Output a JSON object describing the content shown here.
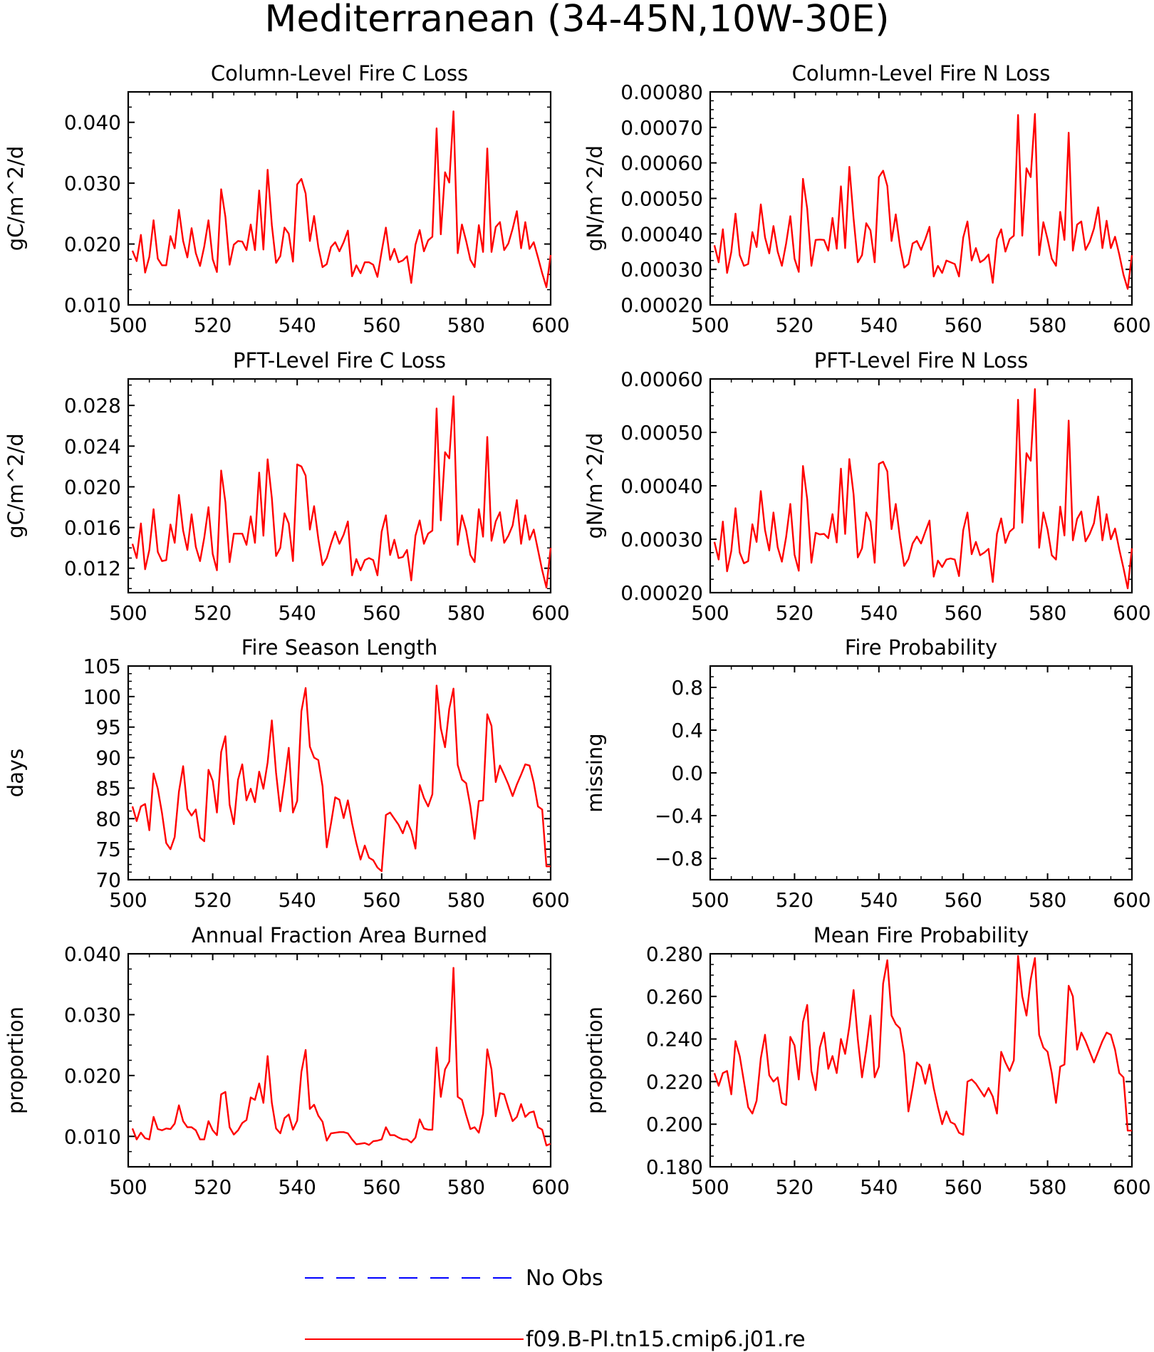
{
  "figure": {
    "title": "Mediterranean (34-45N,10W-30E)"
  },
  "legend": {
    "entries": [
      {
        "label": "No Obs",
        "color": "#0000ff",
        "style": "dashed"
      },
      {
        "label": "f09.B-PI.tn15.cmip6.j01.re",
        "color": "#ff0000",
        "style": "solid"
      }
    ]
  },
  "chart_data": [
    {
      "type": "line",
      "title": "Column-Level Fire C Loss",
      "ylabel": "gC/m^2/d",
      "xlim": [
        500,
        600
      ],
      "xticks": [
        "500",
        "520",
        "540",
        "560",
        "580",
        "600"
      ],
      "ylim": [
        0.01,
        0.045
      ],
      "yticks": [
        "0.010",
        "0.020",
        "0.030",
        "0.040"
      ],
      "series": [
        {
          "color": "#ff0000",
          "x_start": 501,
          "values": [
            0.0189,
            0.0172,
            0.0215,
            0.0153,
            0.0179,
            0.0239,
            0.0176,
            0.0165,
            0.0165,
            0.0213,
            0.0193,
            0.0256,
            0.0205,
            0.0178,
            0.0226,
            0.0185,
            0.0164,
            0.0196,
            0.0239,
            0.0175,
            0.0154,
            0.029,
            0.0245,
            0.0166,
            0.0199,
            0.0205,
            0.0204,
            0.019,
            0.0232,
            0.019,
            0.0288,
            0.0191,
            0.0322,
            0.0231,
            0.0169,
            0.018,
            0.0227,
            0.0217,
            0.0171,
            0.0298,
            0.0307,
            0.0283,
            0.0205,
            0.0246,
            0.0195,
            0.0162,
            0.0167,
            0.0195,
            0.0203,
            0.0188,
            0.0203,
            0.0222,
            0.0147,
            0.0165,
            0.0152,
            0.017,
            0.017,
            0.0166,
            0.0146,
            0.0188,
            0.0227,
            0.0174,
            0.0192,
            0.017,
            0.0173,
            0.018,
            0.0136,
            0.0199,
            0.0223,
            0.0188,
            0.0206,
            0.0212,
            0.039,
            0.0216,
            0.0318,
            0.0301,
            0.0418,
            0.0185,
            0.0232,
            0.0205,
            0.0174,
            0.0162,
            0.0231,
            0.0187,
            0.0357,
            0.0187,
            0.0228,
            0.0236,
            0.019,
            0.0201,
            0.0225,
            0.0254,
            0.0193,
            0.0236,
            0.0192,
            0.0203,
            0.0178,
            0.0152,
            0.0129,
            0.0182
          ]
        }
      ]
    },
    {
      "type": "line",
      "title": "Column-Level Fire N Loss",
      "ylabel": "gN/m^2/d",
      "xlim": [
        500,
        600
      ],
      "xticks": [
        "500",
        "520",
        "540",
        "560",
        "580",
        "600"
      ],
      "ylim": [
        0.0002,
        0.0008
      ],
      "yticks": [
        "0.00020",
        "0.00030",
        "0.00040",
        "0.00050",
        "0.00060",
        "0.00070",
        "0.00080"
      ],
      "series": [
        {
          "color": "#ff0000",
          "x_start": 501,
          "values": [
            0.000368,
            0.00032,
            0.000413,
            0.00029,
            0.000349,
            0.000457,
            0.00034,
            0.00031,
            0.000315,
            0.000405,
            0.000363,
            0.000483,
            0.00039,
            0.000345,
            0.000422,
            0.00035,
            0.00031,
            0.000373,
            0.00045,
            0.00033,
            0.000293,
            0.000555,
            0.000471,
            0.00031,
            0.000383,
            0.000384,
            0.000383,
            0.000353,
            0.000445,
            0.000358,
            0.000534,
            0.00036,
            0.000589,
            0.000443,
            0.00032,
            0.00034,
            0.00043,
            0.00041,
            0.00032,
            0.00056,
            0.000578,
            0.000535,
            0.00038,
            0.000455,
            0.000365,
            0.000305,
            0.000315,
            0.000373,
            0.00038,
            0.000355,
            0.000385,
            0.00042,
            0.00028,
            0.00031,
            0.00029,
            0.000325,
            0.00032,
            0.000315,
            0.00028,
            0.00039,
            0.000435,
            0.000325,
            0.00036,
            0.00032,
            0.000328,
            0.000342,
            0.000262,
            0.000385,
            0.000413,
            0.00035,
            0.000385,
            0.000395,
            0.000735,
            0.000395,
            0.000585,
            0.00056,
            0.000738,
            0.00034,
            0.000433,
            0.000385,
            0.00033,
            0.00031,
            0.000462,
            0.000383,
            0.000685,
            0.000353,
            0.000426,
            0.000435,
            0.000355,
            0.000378,
            0.000415,
            0.000475,
            0.00036,
            0.000437,
            0.00036,
            0.000392,
            0.000342,
            0.000285,
            0.000245,
            0.00034
          ]
        }
      ]
    },
    {
      "type": "line",
      "title": "PFT-Level Fire C Loss",
      "ylabel": "gC/m^2/d",
      "xlim": [
        500,
        600
      ],
      "xticks": [
        "500",
        "520",
        "540",
        "560",
        "580",
        "600"
      ],
      "ylim": [
        0.0096,
        0.0306
      ],
      "yticks": [
        "0.012",
        "0.016",
        "0.020",
        "0.024",
        "0.028"
      ],
      "series": [
        {
          "color": "#ff0000",
          "x_start": 501,
          "values": [
            0.0144,
            0.013,
            0.0164,
            0.0119,
            0.0138,
            0.0178,
            0.0136,
            0.0127,
            0.0128,
            0.0163,
            0.0145,
            0.0192,
            0.0157,
            0.0138,
            0.0173,
            0.0141,
            0.0127,
            0.015,
            0.018,
            0.0134,
            0.0118,
            0.0216,
            0.0185,
            0.0126,
            0.0154,
            0.0154,
            0.0154,
            0.0143,
            0.0171,
            0.0145,
            0.0214,
            0.0152,
            0.0227,
            0.0189,
            0.0132,
            0.014,
            0.0174,
            0.0164,
            0.0127,
            0.0222,
            0.022,
            0.0211,
            0.0158,
            0.0181,
            0.0149,
            0.0123,
            0.013,
            0.0144,
            0.0156,
            0.0144,
            0.0153,
            0.0166,
            0.0113,
            0.0129,
            0.0118,
            0.0128,
            0.013,
            0.0128,
            0.0113,
            0.0156,
            0.0172,
            0.0133,
            0.0148,
            0.013,
            0.0131,
            0.0138,
            0.0108,
            0.0152,
            0.0167,
            0.0144,
            0.0154,
            0.0157,
            0.0277,
            0.0167,
            0.0234,
            0.0228,
            0.0289,
            0.0143,
            0.0172,
            0.0157,
            0.0133,
            0.0126,
            0.0178,
            0.0151,
            0.0249,
            0.0147,
            0.0166,
            0.0175,
            0.0145,
            0.0152,
            0.0162,
            0.0187,
            0.0144,
            0.0172,
            0.0148,
            0.0158,
            0.0138,
            0.0118,
            0.0101,
            0.014
          ]
        }
      ]
    },
    {
      "type": "line",
      "title": "PFT-Level Fire N Loss",
      "ylabel": "gN/m^2/d",
      "xlim": [
        500,
        600
      ],
      "xticks": [
        "500",
        "520",
        "540",
        "560",
        "580",
        "600"
      ],
      "ylim": [
        0.0002,
        0.0006
      ],
      "yticks": [
        "0.00020",
        "0.00030",
        "0.00040",
        "0.00050",
        "0.00060"
      ],
      "series": [
        {
          "color": "#ff0000",
          "x_start": 501,
          "values": [
            0.000295,
            0.000262,
            0.000333,
            0.00024,
            0.000278,
            0.000358,
            0.000275,
            0.000255,
            0.000259,
            0.000328,
            0.000295,
            0.00039,
            0.000317,
            0.000279,
            0.00035,
            0.000285,
            0.000258,
            0.000304,
            0.000366,
            0.000271,
            0.000241,
            0.000437,
            0.000375,
            0.000256,
            0.000312,
            0.000309,
            0.00031,
            0.000302,
            0.000347,
            0.000294,
            0.000432,
            0.00031,
            0.00045,
            0.000384,
            0.000266,
            0.000283,
            0.00035,
            0.000333,
            0.000256,
            0.000441,
            0.000445,
            0.000427,
            0.000319,
            0.000366,
            0.000302,
            0.00025,
            0.000263,
            0.000292,
            0.000305,
            0.000292,
            0.000314,
            0.000335,
            0.00023,
            0.00026,
            0.000248,
            0.000262,
            0.000264,
            0.000262,
            0.000231,
            0.000317,
            0.00035,
            0.000272,
            0.000295,
            0.00027,
            0.000275,
            0.000282,
            0.00022,
            0.00031,
            0.000339,
            0.000293,
            0.000314,
            0.000321,
            0.000561,
            0.000331,
            0.000461,
            0.000447,
            0.000581,
            0.000284,
            0.00035,
            0.000318,
            0.00027,
            0.000262,
            0.000361,
            0.000307,
            0.000522,
            0.000298,
            0.000338,
            0.000352,
            0.000296,
            0.00031,
            0.00033,
            0.00038,
            0.000298,
            0.000347,
            0.0003,
            0.00032,
            0.000281,
            0.000246,
            0.000208,
            0.000283
          ]
        }
      ]
    },
    {
      "type": "line",
      "title": "Fire Season Length",
      "ylabel": "days",
      "xlim": [
        500,
        600
      ],
      "xticks": [
        "500",
        "520",
        "540",
        "560",
        "580",
        "600"
      ],
      "ylim": [
        70,
        105
      ],
      "yticks": [
        "70",
        "75",
        "80",
        "85",
        "90",
        "95",
        "100",
        "105"
      ],
      "series": [
        {
          "color": "#ff0000",
          "x_start": 501,
          "values": [
            82.0,
            79.6,
            82.0,
            82.4,
            78.1,
            87.4,
            84.9,
            80.9,
            76.0,
            75.0,
            77.0,
            84.4,
            88.6,
            81.6,
            80.5,
            81.5,
            76.9,
            76.3,
            88.0,
            86.2,
            81.0,
            90.9,
            93.5,
            82.3,
            79.1,
            86.4,
            88.9,
            83.0,
            84.9,
            82.7,
            87.7,
            84.9,
            89.2,
            96.1,
            87.5,
            81.2,
            86.0,
            91.6,
            81.0,
            82.9,
            97.6,
            101.4,
            91.8,
            90.0,
            89.6,
            85.3,
            75.3,
            79.2,
            83.5,
            83.1,
            80.1,
            83.0,
            79.2,
            76.0,
            73.3,
            75.6,
            73.6,
            73.2,
            72.0,
            71.4,
            80.6,
            81.0,
            80.0,
            79.0,
            77.6,
            79.6,
            78.0,
            75.1,
            85.5,
            83.4,
            82.0,
            84.0,
            101.8,
            94.8,
            91.7,
            98.0,
            101.3,
            88.8,
            86.4,
            85.8,
            82.0,
            76.7,
            82.9,
            83.0,
            97.1,
            95.2,
            86.0,
            88.7,
            87.2,
            85.6,
            83.7,
            85.6,
            87.2,
            88.9,
            88.7,
            85.9,
            82.0,
            81.5,
            72.2,
            72.2
          ]
        }
      ]
    },
    {
      "type": "line",
      "title": "Fire Probability",
      "ylabel": "missing",
      "xlim": [
        500,
        600
      ],
      "xticks": [
        "500",
        "520",
        "540",
        "560",
        "580",
        "600"
      ],
      "ylim": [
        -1.0,
        1.0
      ],
      "yticks": [
        "-0.8",
        "-0.4",
        "0.0",
        "0.4",
        "0.8"
      ],
      "series": []
    },
    {
      "type": "line",
      "title": "Annual Fraction Area Burned",
      "ylabel": "proportion",
      "xlim": [
        500,
        600
      ],
      "xticks": [
        "500",
        "520",
        "540",
        "560",
        "580",
        "600"
      ],
      "ylim": [
        0.005,
        0.04
      ],
      "yticks": [
        "0.010",
        "0.020",
        "0.030",
        "0.040"
      ],
      "series": [
        {
          "color": "#ff0000",
          "x_start": 501,
          "values": [
            0.0113,
            0.0095,
            0.0106,
            0.0097,
            0.0095,
            0.0132,
            0.0112,
            0.011,
            0.0113,
            0.0112,
            0.0121,
            0.0151,
            0.0125,
            0.0115,
            0.0115,
            0.011,
            0.0095,
            0.0095,
            0.0125,
            0.011,
            0.0102,
            0.0169,
            0.0173,
            0.0115,
            0.0103,
            0.011,
            0.0122,
            0.0127,
            0.0164,
            0.016,
            0.0187,
            0.0155,
            0.0232,
            0.0155,
            0.0113,
            0.0105,
            0.013,
            0.0136,
            0.0111,
            0.0126,
            0.0206,
            0.0242,
            0.0145,
            0.0152,
            0.0134,
            0.0124,
            0.0093,
            0.0105,
            0.0106,
            0.0107,
            0.0107,
            0.0105,
            0.0095,
            0.0087,
            0.0088,
            0.0089,
            0.0086,
            0.0092,
            0.0093,
            0.0095,
            0.0115,
            0.0102,
            0.0102,
            0.0098,
            0.0095,
            0.0095,
            0.009,
            0.0098,
            0.0128,
            0.0113,
            0.0111,
            0.0111,
            0.0246,
            0.0165,
            0.021,
            0.0223,
            0.0377,
            0.0165,
            0.016,
            0.0135,
            0.0112,
            0.0115,
            0.0106,
            0.0137,
            0.0243,
            0.021,
            0.0133,
            0.0171,
            0.0169,
            0.0146,
            0.0125,
            0.0132,
            0.0153,
            0.0132,
            0.0139,
            0.0141,
            0.0115,
            0.0111,
            0.0085,
            0.0088
          ]
        }
      ]
    },
    {
      "type": "line",
      "title": "Mean Fire Probability",
      "ylabel": "proportion",
      "xlim": [
        500,
        600
      ],
      "xticks": [
        "500",
        "520",
        "540",
        "560",
        "580",
        "600"
      ],
      "ylim": [
        0.18,
        0.28
      ],
      "yticks": [
        "0.180",
        "0.200",
        "0.220",
        "0.240",
        "0.260",
        "0.280"
      ],
      "series": [
        {
          "color": "#ff0000",
          "x_start": 501,
          "values": [
            0.224,
            0.218,
            0.224,
            0.225,
            0.214,
            0.239,
            0.232,
            0.22,
            0.208,
            0.205,
            0.211,
            0.231,
            0.242,
            0.223,
            0.22,
            0.222,
            0.21,
            0.209,
            0.241,
            0.237,
            0.221,
            0.248,
            0.256,
            0.225,
            0.216,
            0.236,
            0.243,
            0.226,
            0.232,
            0.224,
            0.24,
            0.233,
            0.246,
            0.263,
            0.24,
            0.222,
            0.235,
            0.251,
            0.222,
            0.227,
            0.266,
            0.277,
            0.251,
            0.247,
            0.245,
            0.233,
            0.206,
            0.217,
            0.229,
            0.227,
            0.219,
            0.228,
            0.217,
            0.208,
            0.2,
            0.206,
            0.201,
            0.2,
            0.196,
            0.195,
            0.22,
            0.221,
            0.219,
            0.216,
            0.213,
            0.217,
            0.213,
            0.205,
            0.234,
            0.229,
            0.225,
            0.23,
            0.279,
            0.26,
            0.251,
            0.268,
            0.278,
            0.242,
            0.236,
            0.234,
            0.224,
            0.21,
            0.227,
            0.228,
            0.265,
            0.26,
            0.235,
            0.243,
            0.239,
            0.234,
            0.229,
            0.234,
            0.239,
            0.243,
            0.242,
            0.235,
            0.224,
            0.222,
            0.197,
            0.197
          ]
        }
      ]
    }
  ]
}
